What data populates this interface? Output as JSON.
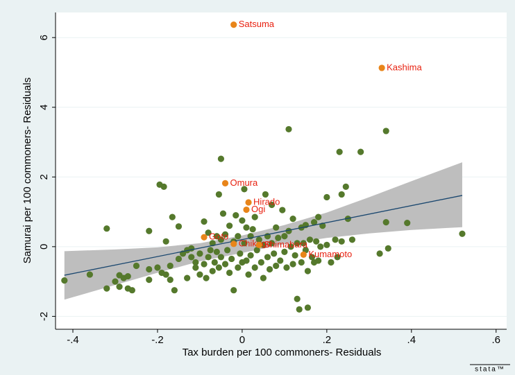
{
  "chart_data": {
    "type": "scatter",
    "x_label": "Tax burden per 100 commoners- Residuals",
    "y_label": "Samurai per 100 commoners- Residuals",
    "watermark": "stata™",
    "xlim": [
      -0.441,
      0.625
    ],
    "ylim": [
      -2.37,
      6.72
    ],
    "xticks": [
      {
        "value": -0.4,
        "label": "-.4"
      },
      {
        "value": -0.2,
        "label": "-.2"
      },
      0,
      {
        "value": 0.2,
        "label": ".2"
      },
      {
        "value": 0.4,
        "label": ".4"
      },
      {
        "value": 0.6,
        "label": ".6"
      }
    ],
    "yticks": [
      -2,
      0,
      2,
      4,
      6
    ],
    "grid": true,
    "points": {
      "color": "#55792c",
      "x": [
        -0.42,
        -0.36,
        -0.32,
        -0.32,
        -0.3,
        -0.29,
        -0.29,
        -0.28,
        -0.27,
        -0.27,
        -0.26,
        -0.25,
        -0.22,
        -0.22,
        -0.22,
        -0.2,
        -0.195,
        -0.19,
        -0.185,
        -0.18,
        -0.18,
        -0.17,
        -0.17,
        -0.165,
        -0.16,
        -0.15,
        -0.15,
        -0.14,
        -0.13,
        -0.13,
        -0.12,
        -0.12,
        -0.11,
        -0.11,
        -0.1,
        -0.1,
        -0.09,
        -0.09,
        -0.085,
        -0.08,
        -0.08,
        -0.075,
        -0.07,
        -0.07,
        -0.065,
        -0.06,
        -0.06,
        -0.055,
        -0.05,
        -0.05,
        -0.055,
        -0.05,
        -0.045,
        -0.04,
        -0.04,
        -0.035,
        -0.03,
        -0.03,
        -0.025,
        -0.02,
        -0.02,
        -0.015,
        -0.01,
        -0.01,
        -0.005,
        0.0,
        0.0,
        0.005,
        0.005,
        0.01,
        0.01,
        0.015,
        0.02,
        0.02,
        0.025,
        0.03,
        0.03,
        0.035,
        0.04,
        0.045,
        0.05,
        0.05,
        0.055,
        0.06,
        0.06,
        0.065,
        0.07,
        0.07,
        0.075,
        0.08,
        0.08,
        0.085,
        0.09,
        0.095,
        0.1,
        0.1,
        0.105,
        0.11,
        0.11,
        0.115,
        0.12,
        0.12,
        0.125,
        0.13,
        0.13,
        0.135,
        0.14,
        0.14,
        0.145,
        0.15,
        0.15,
        0.155,
        0.155,
        0.16,
        0.165,
        0.17,
        0.17,
        0.175,
        0.18,
        0.18,
        0.185,
        0.19,
        0.2,
        0.2,
        0.21,
        0.22,
        0.225,
        0.23,
        0.235,
        0.235,
        0.245,
        0.25,
        0.26,
        0.28,
        0.325,
        0.34,
        0.34,
        0.345,
        0.39,
        0.52
      ],
      "y": [
        -0.97,
        -0.8,
        0.52,
        -1.2,
        -1.0,
        -1.15,
        -0.82,
        -0.9,
        -0.85,
        -1.2,
        -1.25,
        -0.55,
        0.45,
        -0.65,
        -0.95,
        -0.6,
        1.78,
        -0.75,
        1.72,
        -0.8,
        0.15,
        -0.55,
        -0.95,
        0.85,
        -1.25,
        0.58,
        -0.35,
        -0.2,
        -0.1,
        -0.9,
        -0.3,
        -0.05,
        -0.45,
        -0.6,
        -0.8,
        -0.2,
        0.72,
        -0.5,
        -0.9,
        0.4,
        -0.3,
        -0.1,
        -0.7,
        0.1,
        -0.45,
        0.3,
        -0.15,
        -0.6,
        0.2,
        -0.3,
        1.5,
        2.52,
        0.95,
        0.35,
        -0.5,
        -0.1,
        -0.75,
        0.6,
        -0.35,
        -1.25,
        0.15,
        0.9,
        -0.6,
        0.3,
        -0.2,
        0.75,
        -0.45,
        1.65,
        0.1,
        -0.4,
        0.55,
        -0.8,
        0.3,
        -0.25,
        0.5,
        -0.6,
        0.85,
        -0.1,
        0.2,
        -0.45,
        0.05,
        -0.9,
        1.5,
        -0.3,
        0.3,
        -0.65,
        1.2,
        0.1,
        -0.2,
        0.55,
        -0.55,
        0.25,
        -0.4,
        1.05,
        -0.15,
        0.3,
        -0.6,
        3.37,
        0.45,
        0.0,
        -0.5,
        0.8,
        -0.25,
        -1.5,
        0.1,
        -1.8,
        0.55,
        -0.45,
        0.1,
        0.62,
        -0.1,
        -1.75,
        -0.7,
        0.2,
        -0.3,
        0.7,
        -0.45,
        0.15,
        0.85,
        -0.4,
        0.0,
        0.6,
        1.42,
        0.05,
        -0.45,
        0.2,
        -0.3,
        2.72,
        1.5,
        0.15,
        1.72,
        0.8,
        0.2,
        2.72,
        -0.2,
        3.32,
        0.7,
        -0.05,
        0.68,
        0.37
      ]
    },
    "labeled_points": {
      "color": "#e8851a",
      "labels": [
        "Satsuma",
        "Kashima",
        "Omura",
        "Hirado",
        "Ogi",
        "Goto",
        "Kumamoto",
        "Chikugo",
        "Shimabara"
      ],
      "x": [
        -0.02,
        0.33,
        -0.04,
        0.015,
        0.01,
        -0.09,
        0.145,
        -0.02,
        0.04
      ],
      "y": [
        6.37,
        5.13,
        1.82,
        1.27,
        1.06,
        0.27,
        -0.23,
        0.08,
        0.05
      ]
    },
    "fit_line": {
      "color": "#1a476f",
      "x": [
        -0.42,
        0.52
      ],
      "y": [
        -0.82,
        1.47
      ]
    },
    "ci_band": {
      "color": "#bebebe",
      "x": [
        -0.42,
        -0.3,
        -0.2,
        -0.1,
        0.0,
        0.1,
        0.2,
        0.3,
        0.4,
        0.52
      ],
      "lower": [
        -1.52,
        -1.1,
        -0.75,
        -0.42,
        -0.18,
        0.07,
        0.25,
        0.38,
        0.48,
        0.56
      ],
      "upper": [
        -0.13,
        -0.08,
        -0.02,
        0.1,
        0.32,
        0.62,
        0.98,
        1.42,
        1.88,
        2.42
      ]
    }
  }
}
